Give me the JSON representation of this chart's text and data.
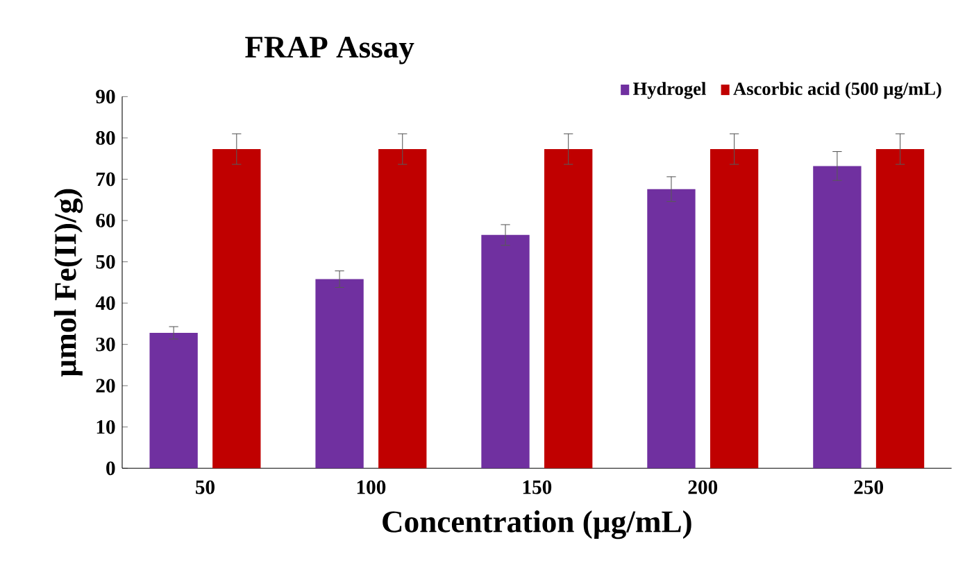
{
  "chart_data": {
    "type": "bar",
    "title": "FRAP Assay",
    "xlabel": "Concentration (µg/mL)",
    "ylabel": "µmol Fe(II)/g)",
    "categories": [
      "50",
      "100",
      "150",
      "200",
      "250"
    ],
    "series": [
      {
        "name": "Hydrogel",
        "color": "#7030a0",
        "values": [
          32.8,
          45.8,
          56.5,
          67.6,
          73.2
        ],
        "errors": [
          1.5,
          2,
          2.5,
          3,
          3.5
        ]
      },
      {
        "name": "Ascorbic acid (500 µg/mL)",
        "color": "#c00000",
        "values": [
          77.3,
          77.3,
          77.3,
          77.3,
          77.3
        ],
        "errors": [
          3.7,
          3.7,
          3.7,
          3.7,
          3.7
        ]
      }
    ],
    "ylim": [
      0,
      90
    ],
    "yticks": [
      0,
      10,
      20,
      30,
      40,
      50,
      60,
      70,
      80,
      90
    ],
    "legend": "top right",
    "grid": false
  }
}
